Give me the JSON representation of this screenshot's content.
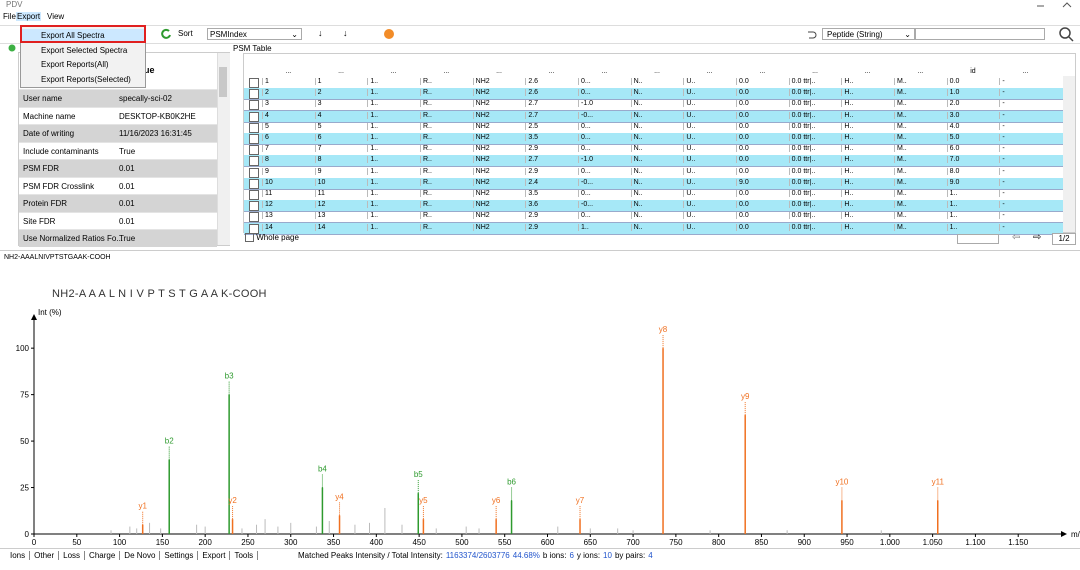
{
  "window": {
    "title": "PDV"
  },
  "menu": [
    "File",
    "Export",
    "View"
  ],
  "export_menu": [
    "Export All Spectra",
    "Export Selected Spectra",
    "Export Reports(All)",
    "Export Reports(Selected)"
  ],
  "toolbar": {
    "sort_label": "Sort",
    "sort_value": "PSMIndex",
    "search_type": "Peptide (String)"
  },
  "settings_table": {
    "header": "Value",
    "rows": [
      [
        "User name",
        "specally-sci-02"
      ],
      [
        "Machine name",
        "DESKTOP-KB0K2HE"
      ],
      [
        "Date of writing",
        "11/16/2023 16:31:45"
      ],
      [
        "Include contaminants",
        "True"
      ],
      [
        "PSM FDR",
        "0.01"
      ],
      [
        "PSM FDR Crosslink",
        "0.01"
      ],
      [
        "Protein FDR",
        "0.01"
      ],
      [
        "Site FDR",
        "0.01"
      ],
      [
        "Use Normalized Ratios Fo...",
        "True"
      ]
    ]
  },
  "psm_table": {
    "title": "PSM Table",
    "header": [
      "...",
      "...",
      "...",
      "...",
      "...",
      "...",
      "...",
      "...",
      "...",
      "...",
      "...",
      "...",
      "...",
      "id",
      "..."
    ],
    "rows": [
      [
        "1",
        "1",
        "1..",
        "R..",
        "NH2",
        "2.6",
        "0...",
        "N..",
        "U..",
        "0.0",
        "0.0 ttr|..",
        "H..",
        "M..",
        "0.0",
        "-"
      ],
      [
        "2",
        "2",
        "1..",
        "R..",
        "NH2",
        "2.6",
        "0...",
        "N..",
        "U..",
        "0.0",
        "0.0 ttr|..",
        "H..",
        "M..",
        "1.0",
        "-"
      ],
      [
        "3",
        "3",
        "1..",
        "R..",
        "NH2",
        "2.7",
        "-1.0",
        "N..",
        "U..",
        "0.0",
        "0.0 ttr|..",
        "H..",
        "M..",
        "2.0",
        "-"
      ],
      [
        "4",
        "4",
        "1..",
        "R..",
        "NH2",
        "2.7",
        "-0...",
        "N..",
        "U..",
        "0.0",
        "0.0 ttr|..",
        "H..",
        "M..",
        "3.0",
        "-"
      ],
      [
        "5",
        "5",
        "1..",
        "R..",
        "NH2",
        "2.5",
        "0...",
        "N..",
        "U..",
        "0.0",
        "0.0 ttr|..",
        "H..",
        "M..",
        "4.0",
        "-"
      ],
      [
        "6",
        "6",
        "1..",
        "R..",
        "NH2",
        "3.5",
        "0...",
        "N..",
        "U..",
        "0.0",
        "0.0 ttr|..",
        "H..",
        "M..",
        "5.0",
        "-"
      ],
      [
        "7",
        "7",
        "1..",
        "R..",
        "NH2",
        "2.9",
        "0...",
        "N..",
        "U..",
        "0.0",
        "0.0 ttr|..",
        "H..",
        "M..",
        "6.0",
        "-"
      ],
      [
        "8",
        "8",
        "1..",
        "R..",
        "NH2",
        "2.7",
        "-1.0",
        "N..",
        "U..",
        "0.0",
        "0.0 ttr|..",
        "H..",
        "M..",
        "7.0",
        "-"
      ],
      [
        "9",
        "9",
        "1..",
        "R..",
        "NH2",
        "2.9",
        "0...",
        "N..",
        "U..",
        "0.0",
        "0.0 ttr|..",
        "H..",
        "M..",
        "8.0",
        "-"
      ],
      [
        "10",
        "10",
        "1..",
        "R..",
        "NH2",
        "2.4",
        "-0...",
        "N..",
        "U..",
        "9.0",
        "0.0 ttr|..",
        "H..",
        "M..",
        "9.0",
        "-"
      ],
      [
        "11",
        "11",
        "1..",
        "R..",
        "NH2",
        "3.5",
        "0...",
        "N..",
        "U..",
        "0.0",
        "0.0 ttr|..",
        "H..",
        "M..",
        "1..",
        "-"
      ],
      [
        "12",
        "12",
        "1..",
        "R..",
        "NH2",
        "3.6",
        "-0...",
        "N..",
        "U..",
        "0.0",
        "0.0 ttr|..",
        "H..",
        "M..",
        "1..",
        "-"
      ],
      [
        "13",
        "13",
        "1..",
        "R..",
        "NH2",
        "2.9",
        "0...",
        "N..",
        "U..",
        "0.0",
        "0.0 ttr|..",
        "H..",
        "M..",
        "1..",
        "-"
      ],
      [
        "14",
        "14",
        "1..",
        "R..",
        "NH2",
        "2.9",
        "1..",
        "N..",
        "U..",
        "0.0",
        "0.0 ttr|..",
        "H..",
        "M..",
        "1..",
        "-"
      ]
    ],
    "whole_page": "Whole page",
    "page": "1/2"
  },
  "spectrum": {
    "title": "NH2-AAALNIVPTSTGAAK-COOH",
    "sequence": "NH2-A A A L N I V P T S T G A A K-COOH",
    "y_label": "Int (%)",
    "x_label": "m/z",
    "xlim": [
      0,
      1200
    ],
    "ylim": [
      0,
      120
    ],
    "xticks": [
      0,
      50,
      100,
      150,
      200,
      250,
      300,
      350,
      400,
      450,
      500,
      550,
      600,
      650,
      700,
      750,
      800,
      850,
      900,
      950,
      {
        "value": 1000,
        "label": "1,000"
      },
      {
        "value": 1050,
        "label": "1,050"
      },
      {
        "value": 1100,
        "label": "1,100"
      },
      {
        "value": 1150,
        "label": "1,150"
      }
    ],
    "yticks": [
      0,
      25,
      50,
      75,
      100
    ],
    "peaks": [
      {
        "mz": 127,
        "intensity": 5,
        "label": "y1",
        "color": "#f07020"
      },
      {
        "mz": 158,
        "intensity": 40,
        "label": "b2",
        "color": "#2e9a2e"
      },
      {
        "mz": 228,
        "intensity": 75,
        "label": "b3",
        "color": "#2e9a2e"
      },
      {
        "mz": 232,
        "intensity": 8,
        "label": "y2",
        "color": "#f07020"
      },
      {
        "mz": 337,
        "intensity": 25,
        "label": "b4",
        "color": "#2e9a2e"
      },
      {
        "mz": 357,
        "intensity": 10,
        "label": "y4",
        "color": "#f07020"
      },
      {
        "mz": 449,
        "intensity": 22,
        "label": "b5",
        "color": "#2e9a2e"
      },
      {
        "mz": 455,
        "intensity": 8,
        "label": "y5",
        "color": "#f07020"
      },
      {
        "mz": 540,
        "intensity": 8,
        "label": "y6",
        "color": "#f07020"
      },
      {
        "mz": 558,
        "intensity": 18,
        "label": "b6",
        "color": "#2e9a2e"
      },
      {
        "mz": 638,
        "intensity": 8,
        "label": "y7",
        "color": "#f07020"
      },
      {
        "mz": 735,
        "intensity": 100,
        "label": "y8",
        "color": "#f07020"
      },
      {
        "mz": 831,
        "intensity": 64,
        "label": "y9",
        "color": "#f07020"
      },
      {
        "mz": 944,
        "intensity": 18,
        "label": "y10",
        "color": "#f07020"
      },
      {
        "mz": 1056,
        "intensity": 18,
        "label": "y11",
        "color": "#f07020"
      },
      {
        "mz": 90,
        "intensity": 2,
        "color": "#bbbbbb"
      },
      {
        "mz": 112,
        "intensity": 4,
        "color": "#bbbbbb"
      },
      {
        "mz": 120,
        "intensity": 3,
        "color": "#bbbbbb"
      },
      {
        "mz": 135,
        "intensity": 6,
        "color": "#bbbbbb"
      },
      {
        "mz": 148,
        "intensity": 3,
        "color": "#bbbbbb"
      },
      {
        "mz": 190,
        "intensity": 5,
        "color": "#bbbbbb"
      },
      {
        "mz": 200,
        "intensity": 4,
        "color": "#bbbbbb"
      },
      {
        "mz": 243,
        "intensity": 3,
        "color": "#bbbbbb"
      },
      {
        "mz": 260,
        "intensity": 5,
        "color": "#bbbbbb"
      },
      {
        "mz": 270,
        "intensity": 8,
        "color": "#bbbbbb"
      },
      {
        "mz": 285,
        "intensity": 4,
        "color": "#bbbbbb"
      },
      {
        "mz": 300,
        "intensity": 6,
        "color": "#bbbbbb"
      },
      {
        "mz": 330,
        "intensity": 4,
        "color": "#bbbbbb"
      },
      {
        "mz": 345,
        "intensity": 7,
        "color": "#bbbbbb"
      },
      {
        "mz": 375,
        "intensity": 5,
        "color": "#bbbbbb"
      },
      {
        "mz": 392,
        "intensity": 6,
        "color": "#bbbbbb"
      },
      {
        "mz": 410,
        "intensity": 14,
        "color": "#bbbbbb"
      },
      {
        "mz": 430,
        "intensity": 5,
        "color": "#bbbbbb"
      },
      {
        "mz": 470,
        "intensity": 3,
        "color": "#bbbbbb"
      },
      {
        "mz": 505,
        "intensity": 4,
        "color": "#bbbbbb"
      },
      {
        "mz": 520,
        "intensity": 3,
        "color": "#bbbbbb"
      },
      {
        "mz": 612,
        "intensity": 4,
        "color": "#bbbbbb"
      },
      {
        "mz": 650,
        "intensity": 3,
        "color": "#bbbbbb"
      },
      {
        "mz": 682,
        "intensity": 3,
        "color": "#bbbbbb"
      },
      {
        "mz": 700,
        "intensity": 2,
        "color": "#bbbbbb"
      },
      {
        "mz": 790,
        "intensity": 2,
        "color": "#bbbbbb"
      },
      {
        "mz": 880,
        "intensity": 2,
        "color": "#bbbbbb"
      },
      {
        "mz": 990,
        "intensity": 2,
        "color": "#bbbbbb"
      }
    ]
  },
  "tabs": [
    "Ions",
    "Other",
    "Loss",
    "Charge",
    "De Novo",
    "Settings",
    "Export",
    "Tools"
  ],
  "status": {
    "text": "Matched Peaks Intensity / Total Intensity:",
    "ratio": "1163374/2603776",
    "percent": "44.68%",
    "b_label": "b ions:",
    "b": 6,
    "y_label": "y ions:",
    "y": 10,
    "pair_label": "by pairs:",
    "pairs": 4
  }
}
